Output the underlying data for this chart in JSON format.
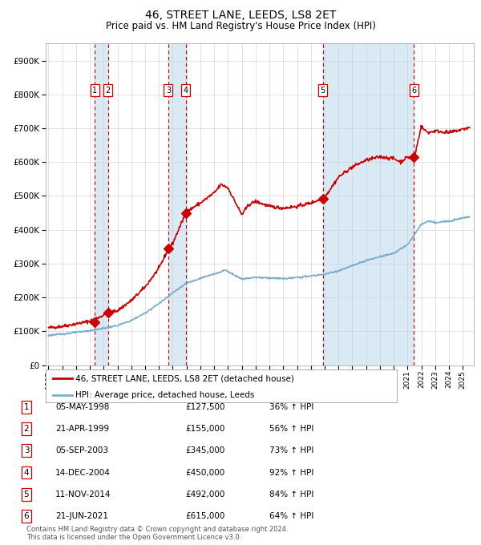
{
  "title": "46, STREET LANE, LEEDS, LS8 2ET",
  "subtitle": "Price paid vs. HM Land Registry's House Price Index (HPI)",
  "footer1": "Contains HM Land Registry data © Crown copyright and database right 2024.",
  "footer2": "This data is licensed under the Open Government Licence v3.0.",
  "legend_red": "46, STREET LANE, LEEDS, LS8 2ET (detached house)",
  "legend_blue": "HPI: Average price, detached house, Leeds",
  "transactions": [
    {
      "num": 1,
      "date": "05-MAY-1998",
      "price": 127500,
      "hpi_pct": "36% ↑ HPI",
      "year": 1998.35
    },
    {
      "num": 2,
      "date": "21-APR-1999",
      "price": 155000,
      "hpi_pct": "56% ↑ HPI",
      "year": 1999.3
    },
    {
      "num": 3,
      "date": "05-SEP-2003",
      "price": 345000,
      "hpi_pct": "73% ↑ HPI",
      "year": 2003.68
    },
    {
      "num": 4,
      "date": "14-DEC-2004",
      "price": 450000,
      "hpi_pct": "92% ↑ HPI",
      "year": 2004.95
    },
    {
      "num": 5,
      "date": "11-NOV-2014",
      "price": 492000,
      "hpi_pct": "84% ↑ HPI",
      "year": 2014.86
    },
    {
      "num": 6,
      "date": "21-JUN-2021",
      "price": 615000,
      "hpi_pct": "64% ↑ HPI",
      "year": 2021.47
    }
  ],
  "red_color": "#cc0000",
  "blue_color": "#7aaccc",
  "shade_color": "#daeaf5",
  "background_color": "#ffffff",
  "grid_color": "#cccccc",
  "ylim": [
    0,
    950000
  ],
  "xlim_start": 1994.8,
  "xlim_end": 2025.8
}
